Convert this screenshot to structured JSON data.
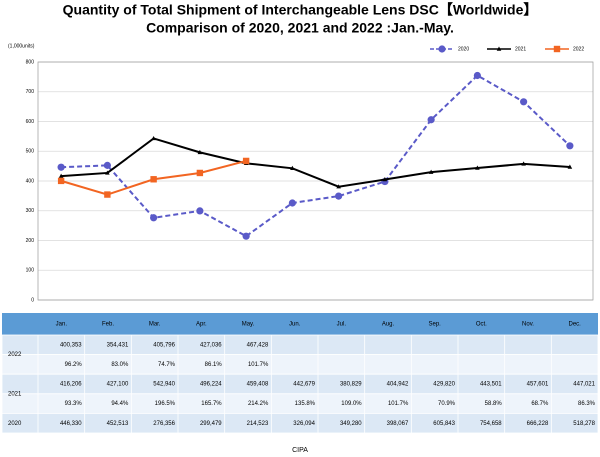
{
  "chart_data": {
    "type": "line",
    "title": "Quantity of Total Shipment of Interchangeable Lens DSC【Worldwide】",
    "subtitle": "Comparison of 2020, 2021 and 2022 :Jan.-May.",
    "y_label": "(1,000units)",
    "categories": [
      "Jan.",
      "Feb.",
      "Mar.",
      "Apr.",
      "May.",
      "Jun.",
      "Jul.",
      "Aug.",
      "Sep.",
      "Oct.",
      "Nov.",
      "Dec."
    ],
    "series": [
      {
        "name": "2020",
        "color": "#5a5ac8",
        "marker": "circle",
        "dashed": true,
        "values": [
          446.33,
          452.513,
          276.356,
          299.479,
          214.523,
          326.094,
          349.28,
          398.067,
          605.843,
          754.658,
          666.228,
          518.278
        ]
      },
      {
        "name": "2021",
        "color": "#000000",
        "marker": "triangle",
        "dashed": false,
        "values": [
          416.206,
          427.1,
          542.94,
          496.224,
          459.408,
          442.679,
          380.829,
          404.942,
          429.82,
          443.501,
          457.601,
          447.021
        ]
      },
      {
        "name": "2022",
        "color": "#f26522",
        "marker": "square",
        "dashed": false,
        "values": [
          400.353,
          354.431,
          405.796,
          427.036,
          467.428,
          null,
          null,
          null,
          null,
          null,
          null,
          null
        ]
      }
    ],
    "ylim": [
      0,
      800
    ],
    "yticks": [
      0,
      100,
      200,
      300,
      400,
      500,
      600,
      700,
      800
    ],
    "grid": true,
    "legend": "top-right"
  },
  "table": {
    "columns": [
      "Jan.",
      "Feb.",
      "Mar.",
      "Apr.",
      "May.",
      "Jun.",
      "Jul.",
      "Aug.",
      "Sep.",
      "Oct.",
      "Nov.",
      "Dec."
    ],
    "groups": [
      {
        "label": "2022",
        "rows": [
          [
            "400,353",
            "354,431",
            "405,796",
            "427,036",
            "467,428"
          ],
          [
            "96.2%",
            "83.0%",
            "74.7%",
            "86.1%",
            "101.7%"
          ]
        ]
      },
      {
        "label": "2021",
        "rows": [
          [
            "416,206",
            "427,100",
            "542,940",
            "496,224",
            "459,408",
            "442,679",
            "380,829",
            "404,942",
            "429,820",
            "443,501",
            "457,601",
            "447,021"
          ],
          [
            "93.3%",
            "94.4%",
            "196.5%",
            "165.7%",
            "214.2%",
            "135.8%",
            "109.0%",
            "101.7%",
            "70.9%",
            "58.8%",
            "68.7%",
            "86.3%"
          ]
        ]
      },
      {
        "label": "2020",
        "rows": [
          [
            "446,330",
            "452,513",
            "276,356",
            "299,479",
            "214,523",
            "326,094",
            "349,280",
            "398,067",
            "605,843",
            "754,658",
            "666,228",
            "518,278"
          ]
        ]
      }
    ]
  },
  "footer": "CIPA"
}
